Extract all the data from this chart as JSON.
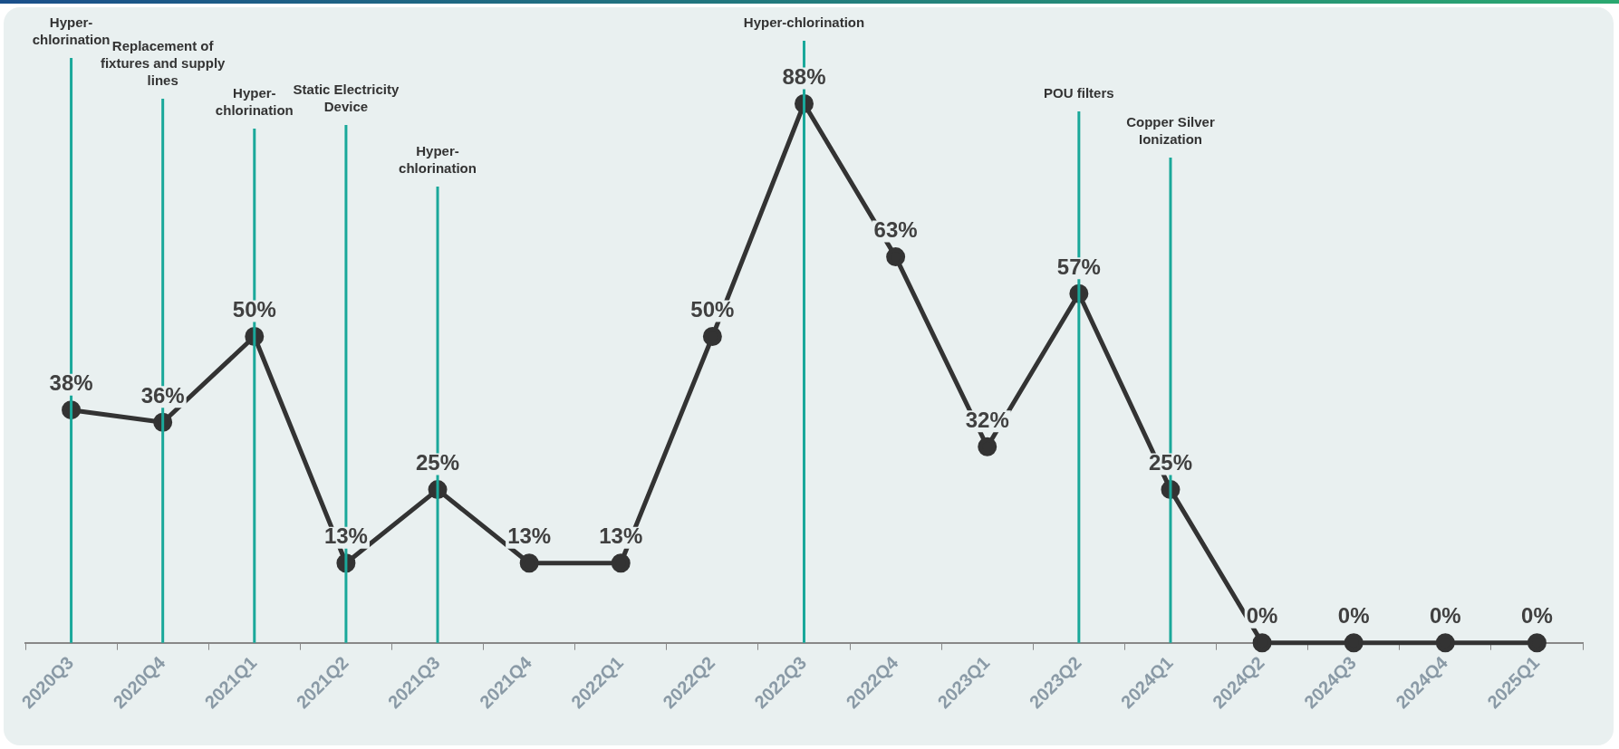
{
  "chart_data": {
    "type": "line",
    "categories": [
      "2020Q3",
      "2020Q4",
      "2021Q1",
      "2021Q2",
      "2021Q3",
      "2021Q4",
      "2022Q1",
      "2022Q2",
      "2022Q3",
      "2022Q4",
      "2023Q1",
      "2023Q2",
      "2024Q1",
      "2024Q2",
      "2024Q3",
      "2024Q4",
      "2025Q1"
    ],
    "series": [
      {
        "color": "#333333",
        "values": [
          38,
          36,
          50,
          13,
          25,
          13,
          13,
          50,
          88,
          63,
          32,
          57,
          25,
          0,
          0,
          0,
          0
        ],
        "value_labels": [
          "38%",
          "36%",
          "50%",
          "13%",
          "25%",
          "13%",
          "13%",
          "50%",
          "88%",
          "63%",
          "32%",
          "57%",
          "25%",
          "0%",
          "0%",
          "0%",
          "0%"
        ]
      }
    ],
    "marker": "circle",
    "grid": false,
    "legend": false,
    "tick_labels": "x",
    "ref_lines": [
      {
        "axis": "x",
        "value": "2020Q3",
        "label": "Hyper-chlorination",
        "color": "#1aa89a"
      },
      {
        "axis": "x",
        "value": "2020Q4",
        "label": "Replacement of fixtures and supply lines",
        "color": "#1aa89a"
      },
      {
        "axis": "x",
        "value": "2021Q1",
        "label": "Hyper-chlorination",
        "color": "#1aa89a"
      },
      {
        "axis": "x",
        "value": "2021Q2",
        "label": "Static Electricity Device",
        "color": "#1aa89a"
      },
      {
        "axis": "x",
        "value": "2021Q3",
        "label": "Hyper-chlorination",
        "color": "#1aa89a"
      },
      {
        "axis": "x",
        "value": "2022Q3",
        "label": "Hyper-chlorination",
        "color": "#1aa89a"
      },
      {
        "axis": "x",
        "value": "2023Q2",
        "label": "POU filters",
        "color": "#1aa89a"
      },
      {
        "axis": "x",
        "value": "2024Q1",
        "label": "Copper Silver Ionization",
        "color": "#1aa89a"
      }
    ]
  }
}
